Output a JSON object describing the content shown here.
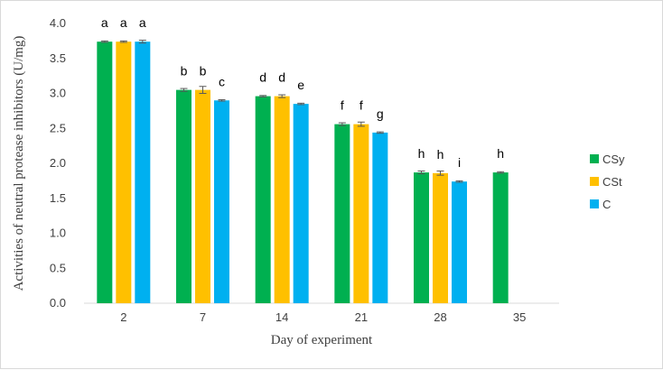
{
  "chart_data": {
    "type": "bar",
    "xlabel": "Day of experiment",
    "ylabel": "Activities of neutral protease inhibitors (U/mg)",
    "ylim": [
      0,
      4.0
    ],
    "yticks": [
      "0.0",
      "0.5",
      "1.0",
      "1.5",
      "2.0",
      "2.5",
      "3.0",
      "3.5",
      "4.0"
    ],
    "categories": [
      "2",
      "7",
      "14",
      "21",
      "28",
      "35"
    ],
    "grid": false,
    "legend_position": "right",
    "series": [
      {
        "name": "CSy",
        "color": "#00b050",
        "values": [
          3.74,
          3.05,
          2.96,
          2.56,
          1.87,
          1.87
        ],
        "errors": [
          0.01,
          0.02,
          0.01,
          0.02,
          0.02,
          0.01
        ],
        "labels": [
          "a",
          "b",
          "d",
          "f",
          "h",
          "h"
        ]
      },
      {
        "name": "CSt",
        "color": "#ffc000",
        "values": [
          3.74,
          3.05,
          2.96,
          2.56,
          1.86,
          null
        ],
        "errors": [
          0.01,
          0.05,
          0.02,
          0.03,
          0.03,
          null
        ],
        "labels": [
          "a",
          "b",
          "d",
          "f",
          "h",
          ""
        ]
      },
      {
        "name": "C",
        "color": "#00b0f0",
        "values": [
          3.74,
          2.9,
          2.85,
          2.44,
          1.74,
          null
        ],
        "errors": [
          0.02,
          0.01,
          0.01,
          0.01,
          0.01,
          null
        ],
        "labels": [
          "a",
          "c",
          "e",
          "g",
          "i",
          ""
        ]
      }
    ]
  }
}
